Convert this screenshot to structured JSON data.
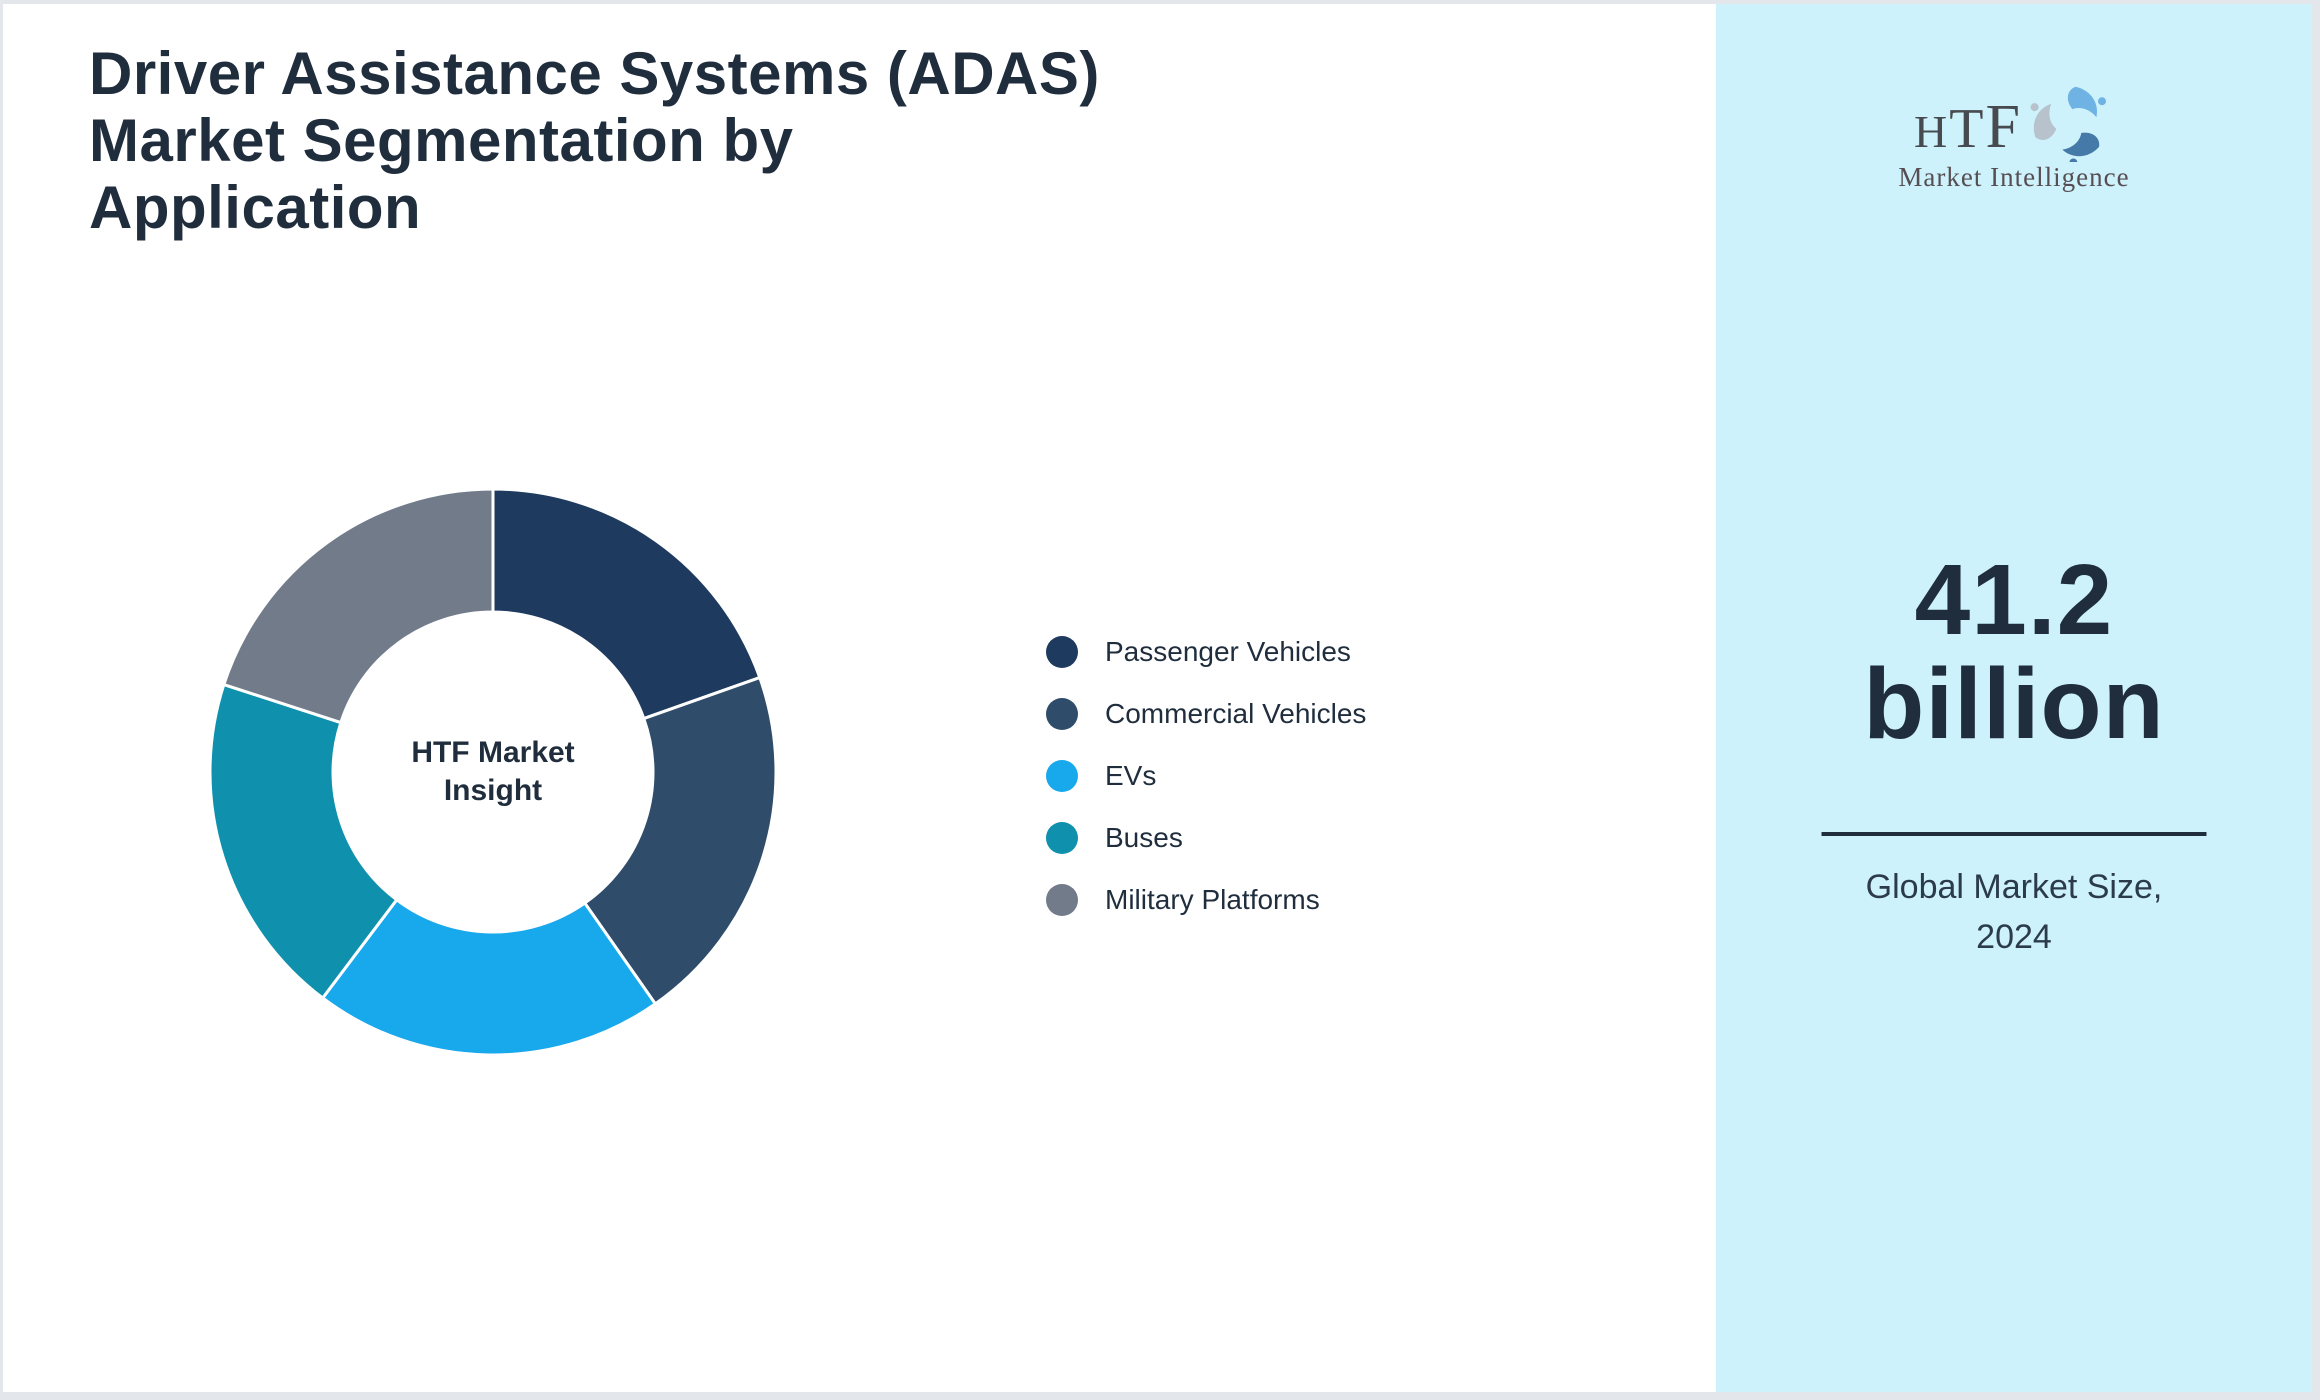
{
  "page": {
    "title_lines": {
      "0": "Driver Assistance Systems (ADAS)",
      "1": "Market Segmentation by",
      "2": "Application"
    }
  },
  "chart_data": {
    "type": "pie",
    "subtype": "donut",
    "title": "Driver Assistance Systems (ADAS) Market Segmentation by Application",
    "center_label_lines": {
      "0": "HTF Market",
      "1": "Insight"
    },
    "start_angle_deg": 0,
    "direction": "clockwise",
    "inner_radius_ratio": 0.565,
    "legend_position": "right",
    "segments": [
      {
        "label": "Passenger Vehicles",
        "color": "#1e3a5f",
        "value_pct": 19.6,
        "angle_deg": 70.5
      },
      {
        "label": "Commercial Vehicles",
        "color": "#2f4d6b",
        "value_pct": 20.7,
        "angle_deg": 74.5
      },
      {
        "label": "EVs",
        "color": "#18a8ec",
        "value_pct": 20.0,
        "angle_deg": 72.0
      },
      {
        "label": "Buses",
        "color": "#0f91ad",
        "value_pct": 19.7,
        "angle_deg": 71.0
      },
      {
        "label": "Military Platforms",
        "color": "#727b8a",
        "value_pct": 20.0,
        "angle_deg": 72.0
      }
    ]
  },
  "sidebar": {
    "logo": {
      "text": "HTF",
      "subtext": "Market Intelligence",
      "icon": "three-dolphins-swirl-icon"
    },
    "stat": {
      "value_line1": "41.2",
      "value_line2": "billion",
      "caption_line1": "Global Market Size,",
      "caption_line2": "2024"
    }
  },
  "colors": {
    "panel_bg": "#cdf2fb",
    "page_border": "#e3e6ea",
    "text_dark": "#1f2d3d",
    "caption_text": "#2b3b4d",
    "divider": "#1f2d3d",
    "logo_text": "#474a4f",
    "logo_subtext": "#564e52",
    "logo_blue": "#6fb2e4",
    "logo_steel": "#4579a8",
    "logo_gray": "#b7c2cd"
  }
}
